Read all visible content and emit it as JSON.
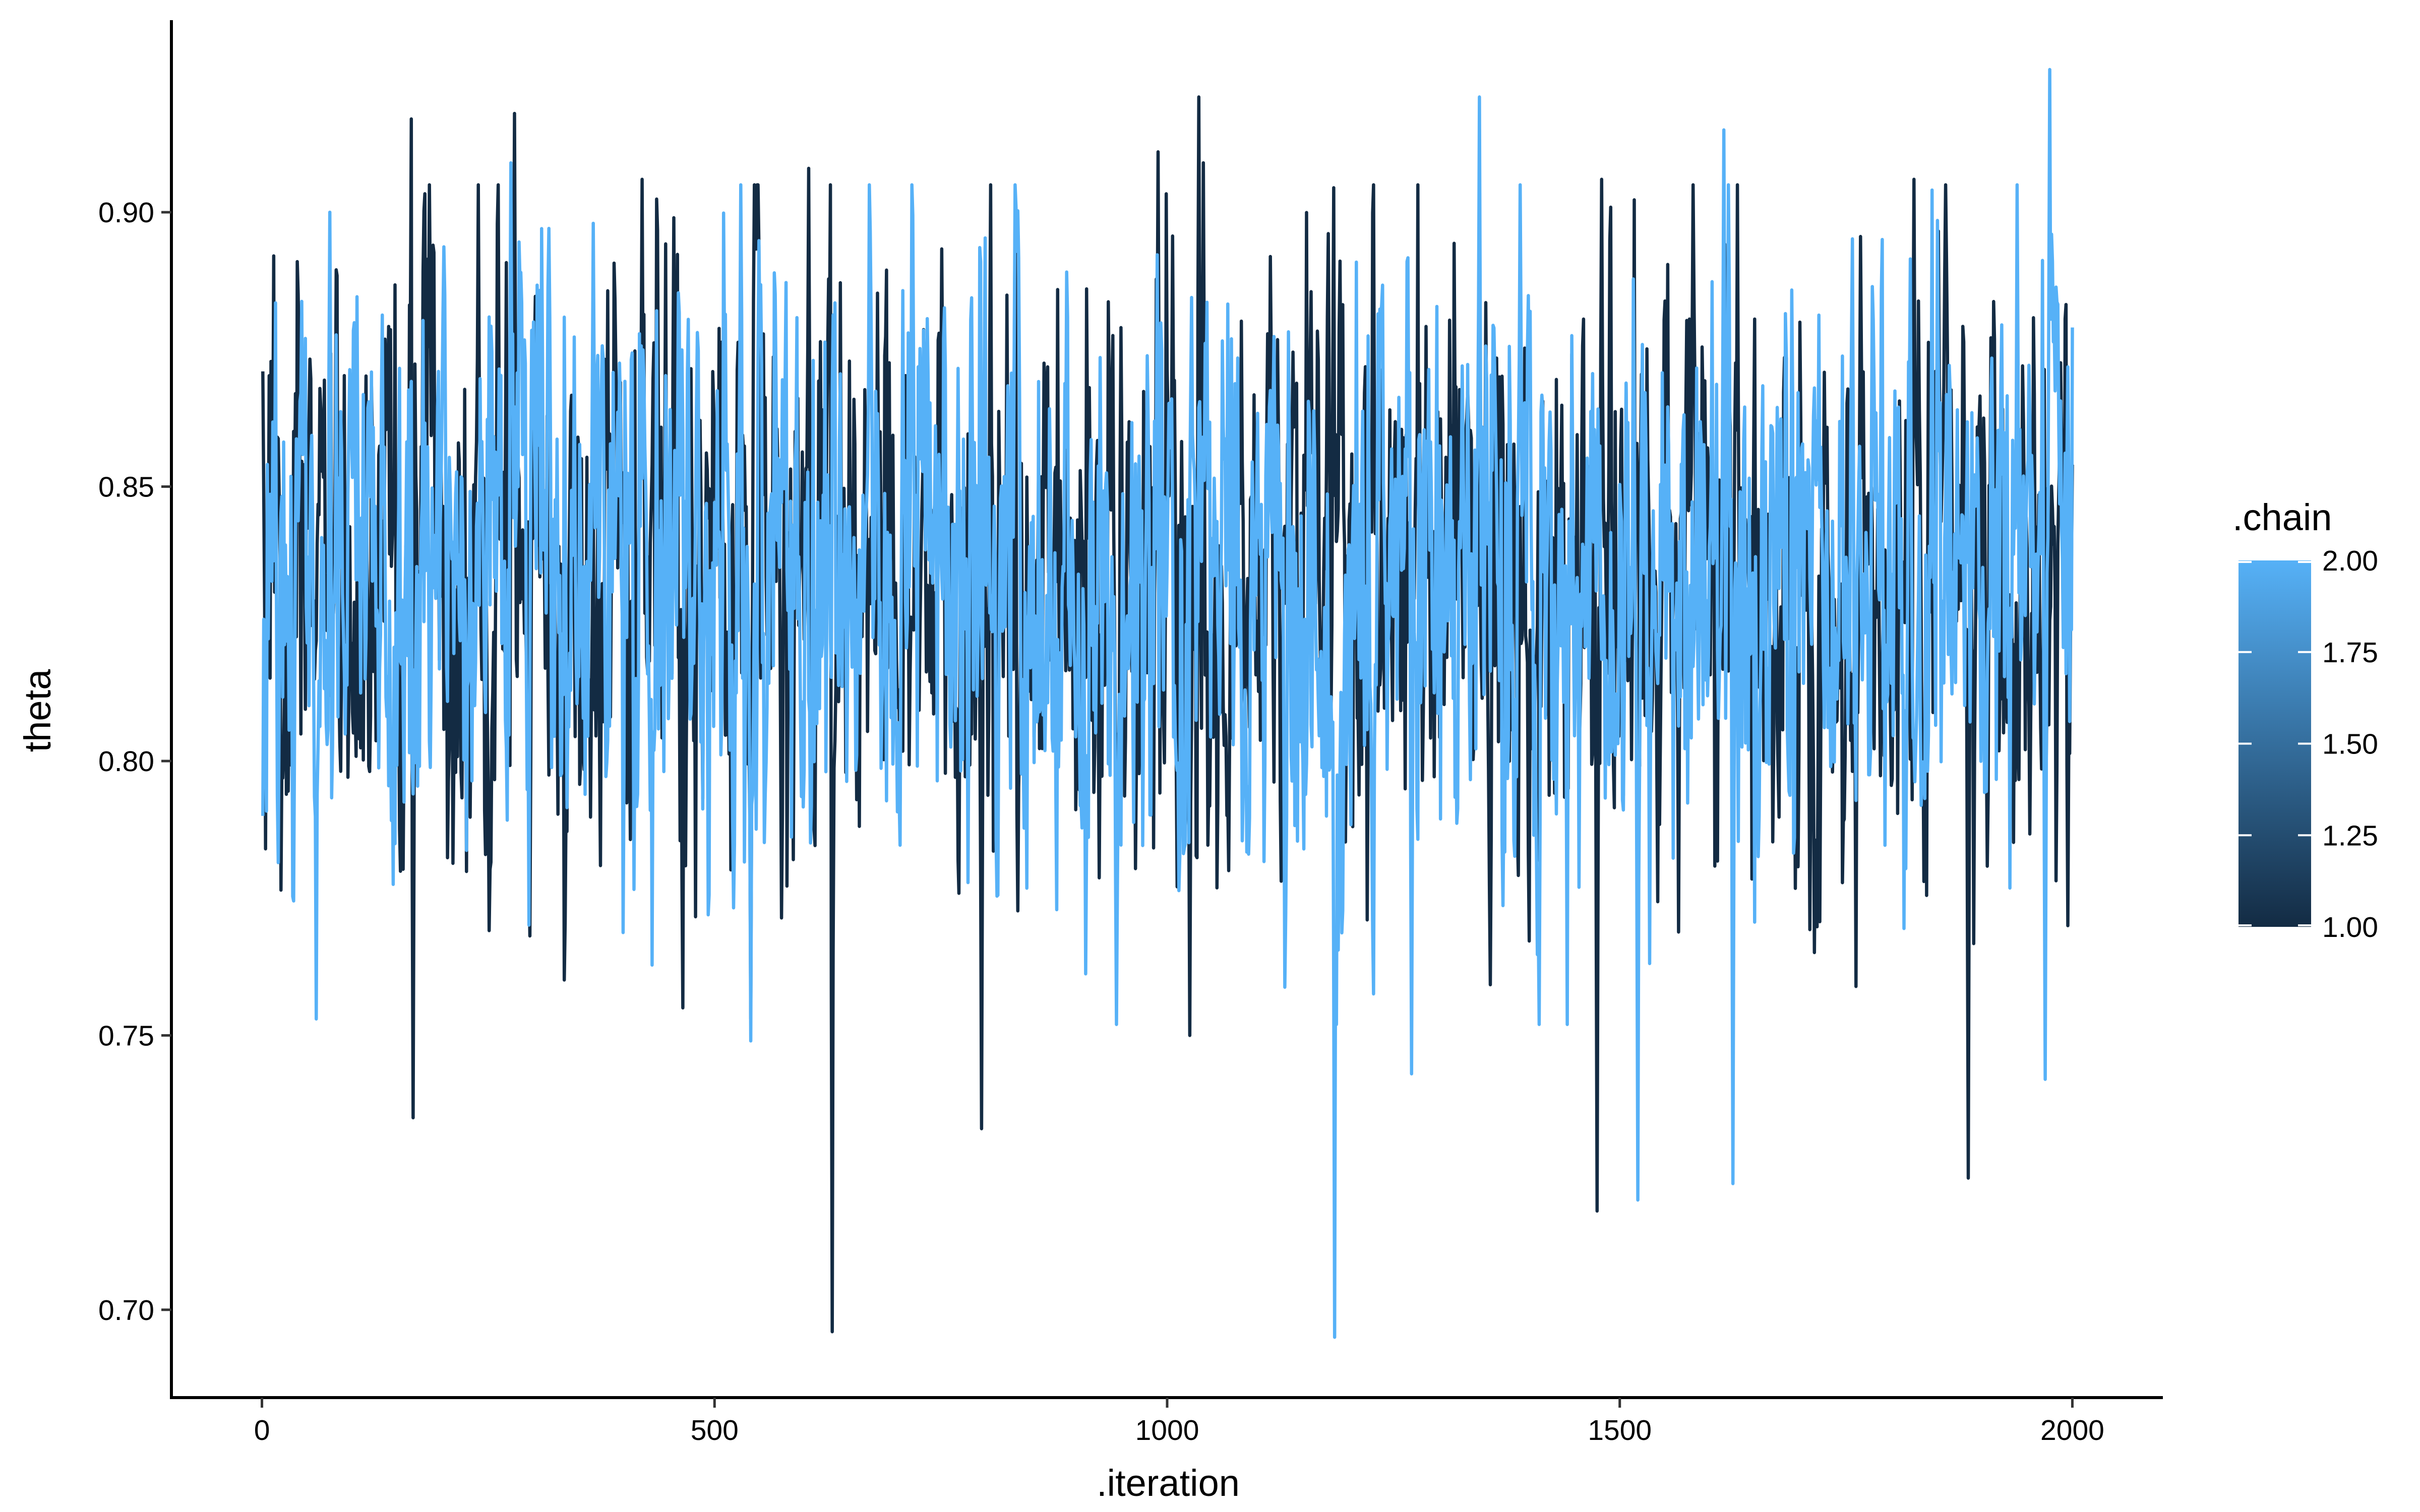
{
  "chart_data": {
    "type": "line",
    "title": "",
    "xlabel": ".iteration",
    "ylabel": "theta",
    "xlim": [
      -100,
      2100
    ],
    "ylim": [
      0.684,
      0.935
    ],
    "x_ticks": [
      0,
      500,
      1000,
      1500,
      2000
    ],
    "x_tick_labels": [
      "0",
      "500",
      "1000",
      "1500",
      "2000"
    ],
    "y_ticks": [
      0.7,
      0.75,
      0.8,
      0.85,
      0.9
    ],
    "y_tick_labels": [
      "0.70",
      "0.75",
      "0.80",
      "0.85",
      "0.90"
    ],
    "grid": false,
    "legend": {
      "title": ".chain",
      "placement": "right",
      "type": "colorbar",
      "range": [
        1.0,
        2.0
      ],
      "low_color": "#132B43",
      "high_color": "#56B1F7",
      "ticks": [
        1.0,
        1.25,
        1.5,
        1.75,
        2.0
      ],
      "tick_labels": [
        "1.00",
        "1.25",
        "1.50",
        "1.75",
        "2.00"
      ]
    },
    "trace": {
      "iterations_per_chain": 2000,
      "center": 0.835,
      "sd": 0.027,
      "autocorrelation": 0.5
    },
    "series": [
      {
        "chain": 1,
        "color": "#132B43",
        "extremes": [
          {
            "x": 1,
            "y": 0.871
          },
          {
            "x": 4,
            "y": 0.784
          },
          {
            "x": 165,
            "y": 0.917
          },
          {
            "x": 167,
            "y": 0.735
          },
          {
            "x": 279,
            "y": 0.918
          },
          {
            "x": 420,
            "y": 0.906
          },
          {
            "x": 455,
            "y": 0.899
          },
          {
            "x": 540,
            "y": 0.753
          },
          {
            "x": 604,
            "y": 0.908
          },
          {
            "x": 630,
            "y": 0.696
          },
          {
            "x": 795,
            "y": 0.733
          },
          {
            "x": 832,
            "y": 0.9
          },
          {
            "x": 990,
            "y": 0.911
          },
          {
            "x": 1025,
            "y": 0.75
          },
          {
            "x": 1035,
            "y": 0.921
          },
          {
            "x": 1040,
            "y": 0.909
          },
          {
            "x": 1475,
            "y": 0.718
          },
          {
            "x": 1480,
            "y": 0.906
          },
          {
            "x": 1825,
            "y": 0.906
          },
          {
            "x": 1885,
            "y": 0.724
          },
          {
            "x": 1995,
            "y": 0.77
          },
          {
            "x": 2000,
            "y": 0.854
          }
        ]
      },
      {
        "chain": 2,
        "color": "#56B1F7",
        "extremes": [
          {
            "x": 1,
            "y": 0.79
          },
          {
            "x": 60,
            "y": 0.753
          },
          {
            "x": 75,
            "y": 0.9
          },
          {
            "x": 275,
            "y": 0.909
          },
          {
            "x": 540,
            "y": 0.749
          },
          {
            "x": 1185,
            "y": 0.695
          },
          {
            "x": 1270,
            "y": 0.743
          },
          {
            "x": 1345,
            "y": 0.921
          },
          {
            "x": 1520,
            "y": 0.72
          },
          {
            "x": 1615,
            "y": 0.915
          },
          {
            "x": 1625,
            "y": 0.723
          },
          {
            "x": 1970,
            "y": 0.742
          },
          {
            "x": 1975,
            "y": 0.926
          },
          {
            "x": 2000,
            "y": 0.879
          }
        ]
      }
    ]
  }
}
